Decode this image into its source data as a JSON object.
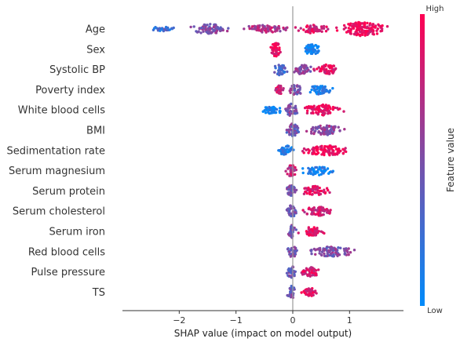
{
  "chart_data": {
    "type": "scatter",
    "subtype": "shap-beeswarm",
    "xlabel": "SHAP value (impact on model output)",
    "xlim": [
      -3.0,
      1.95
    ],
    "x_ticks": [
      -2,
      -1,
      0,
      1
    ],
    "x_tick_labels": [
      "−2",
      "−1",
      "0",
      "1"
    ],
    "zero_line": 0,
    "grid": false,
    "legend": "colorbar-right",
    "colorbar": {
      "title": "Feature value",
      "high_label": "High",
      "low_label": "Low",
      "high_color": "#ff0052",
      "low_color": "#008bfb"
    },
    "features": [
      {
        "name": "Age",
        "clusters": [
          [
            -2.7,
            -1.9,
            0.25,
            0.15
          ],
          [
            -1.9,
            -1.0,
            0.5,
            0.55
          ],
          [
            -1.0,
            0.0,
            0.7,
            0.4
          ],
          [
            0.0,
            0.7,
            0.85,
            0.45
          ],
          [
            0.7,
            1.75,
            0.95,
            0.85
          ]
        ]
      },
      {
        "name": "Sex",
        "clusters": [
          [
            -0.42,
            -0.18,
            0.95,
            0.9
          ],
          [
            0.15,
            0.52,
            0.05,
            0.7
          ]
        ]
      },
      {
        "name": "Systolic BP",
        "clusters": [
          [
            -0.4,
            -0.05,
            0.3,
            0.65
          ],
          [
            -0.05,
            0.35,
            0.55,
            0.6
          ],
          [
            0.3,
            0.88,
            0.92,
            0.55
          ]
        ]
      },
      {
        "name": "Poverty index",
        "clusters": [
          [
            -0.35,
            -0.1,
            0.85,
            0.55
          ],
          [
            -0.1,
            0.2,
            0.5,
            0.65
          ],
          [
            0.2,
            0.75,
            0.12,
            0.5
          ]
        ]
      },
      {
        "name": "White blood cells",
        "clusters": [
          [
            -0.6,
            -0.1,
            0.05,
            0.45
          ],
          [
            -0.15,
            0.1,
            0.5,
            0.75
          ],
          [
            0.1,
            0.95,
            0.95,
            0.6
          ]
        ]
      },
      {
        "name": "BMI",
        "clusters": [
          [
            -0.15,
            0.15,
            0.45,
            0.8
          ],
          [
            0.15,
            0.98,
            0.55,
            0.55
          ]
        ]
      },
      {
        "name": "Sedimentation rate",
        "clusters": [
          [
            -0.3,
            0.05,
            0.1,
            0.6
          ],
          [
            0.05,
            1.15,
            0.95,
            0.55
          ]
        ]
      },
      {
        "name": "Serum magnesium",
        "clusters": [
          [
            -0.15,
            0.1,
            0.75,
            0.75
          ],
          [
            0.1,
            0.78,
            0.08,
            0.5
          ]
        ]
      },
      {
        "name": "Serum protein",
        "clusters": [
          [
            -0.15,
            0.1,
            0.45,
            0.7
          ],
          [
            0.1,
            0.68,
            0.92,
            0.55
          ]
        ]
      },
      {
        "name": "Serum cholesterol",
        "clusters": [
          [
            -0.15,
            0.12,
            0.45,
            0.75
          ],
          [
            0.12,
            0.8,
            0.82,
            0.5
          ]
        ]
      },
      {
        "name": "Serum iron",
        "clusters": [
          [
            -0.12,
            0.08,
            0.45,
            0.75
          ],
          [
            0.08,
            0.58,
            0.92,
            0.5
          ]
        ]
      },
      {
        "name": "Red blood cells",
        "clusters": [
          [
            -0.12,
            0.1,
            0.45,
            0.75
          ],
          [
            0.1,
            1.22,
            0.5,
            0.55
          ]
        ]
      },
      {
        "name": "Pulse pressure",
        "clusters": [
          [
            -0.12,
            0.08,
            0.45,
            0.75
          ],
          [
            0.08,
            0.55,
            0.85,
            0.5
          ]
        ]
      },
      {
        "name": "TS",
        "clusters": [
          [
            -0.12,
            0.08,
            0.45,
            0.75
          ],
          [
            0.08,
            0.48,
            0.9,
            0.5
          ]
        ]
      }
    ]
  }
}
